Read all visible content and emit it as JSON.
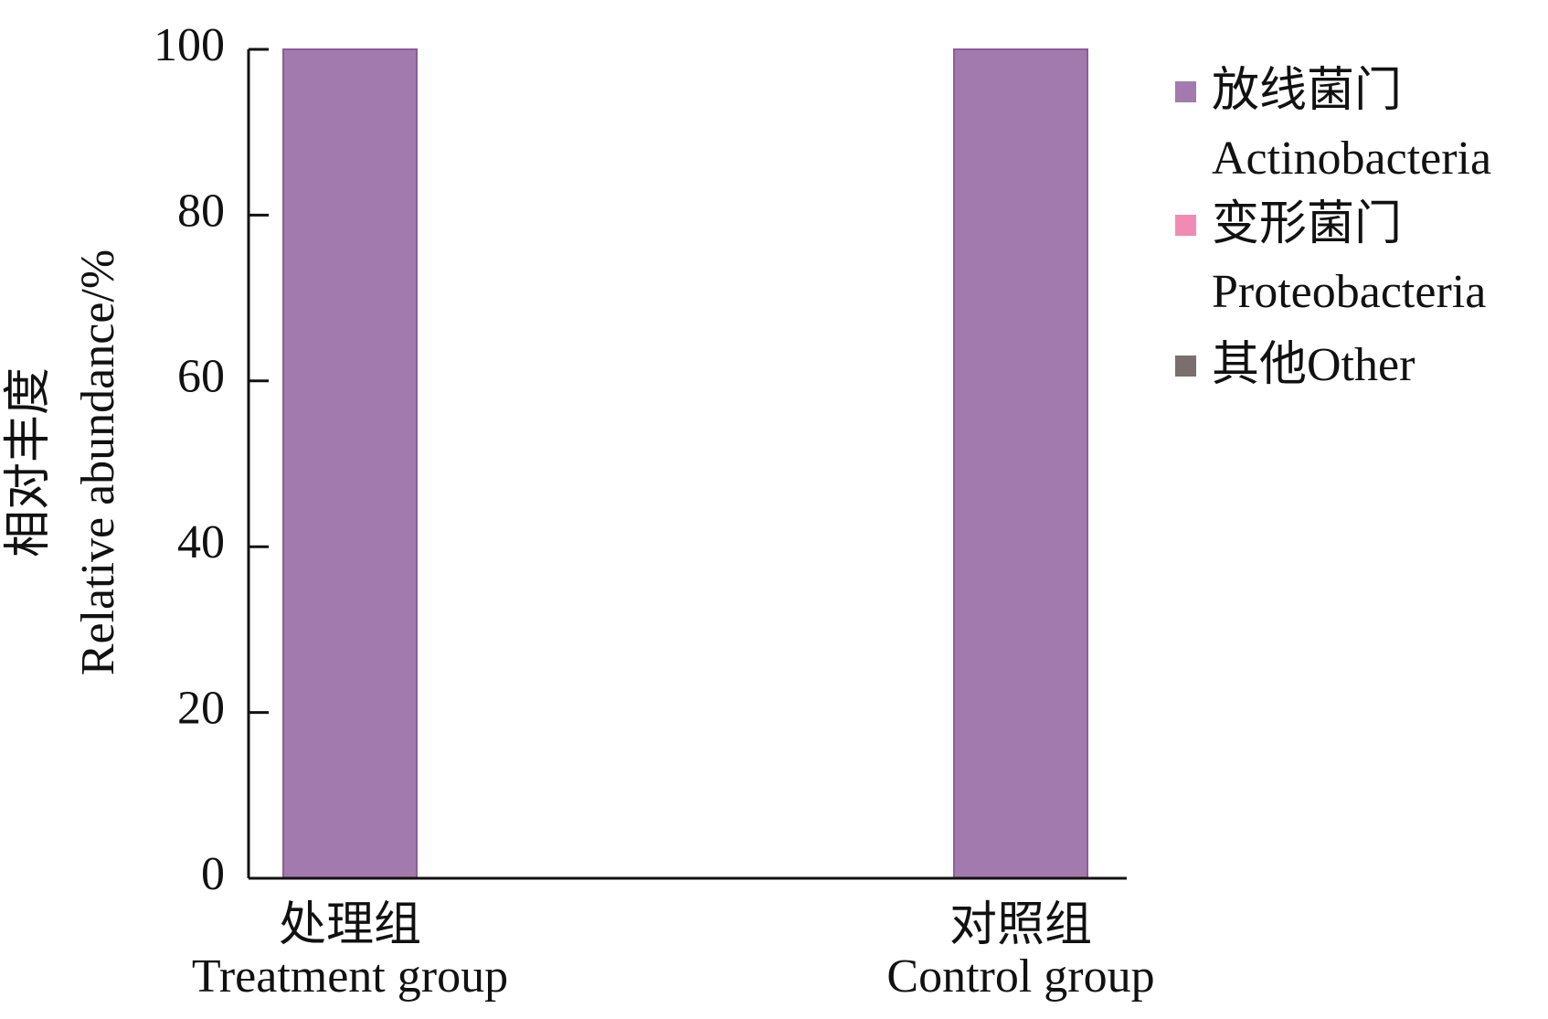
{
  "chart_data": {
    "type": "stacked_bar",
    "ylabel": "相对丰度\nRelative abundance/%",
    "categories": [
      "处理组\nTreatment group",
      "对照组\nControl group"
    ],
    "series": [
      {
        "name": "放线菌门\nActinobacteria",
        "color": "#a27aad",
        "values": [
          100,
          100
        ]
      },
      {
        "name": "变形菌门\nProteobacteria",
        "color": "#f08cb4",
        "values": [
          0,
          0
        ]
      },
      {
        "name": "其他Other",
        "color": "#7a6e6e",
        "values": [
          0,
          0
        ]
      }
    ],
    "ylim": [
      0,
      100
    ],
    "yticks": [
      0,
      20,
      40,
      60,
      80,
      100
    ],
    "grid": false,
    "legend": "right"
  }
}
